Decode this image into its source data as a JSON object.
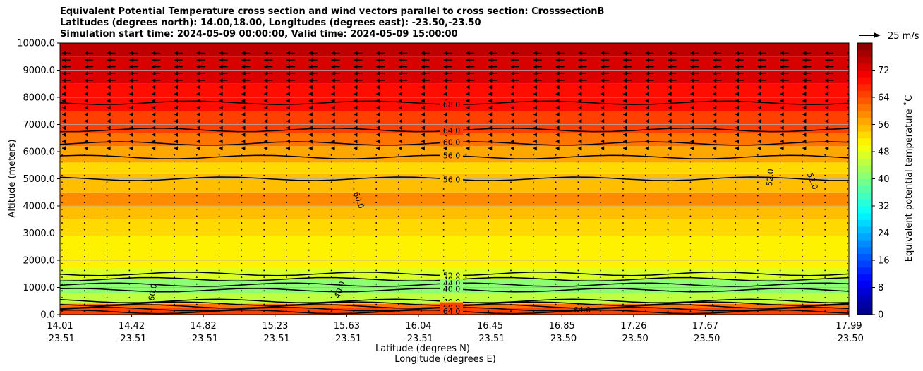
{
  "chart_data": {
    "type": "heatmap",
    "title_lines": [
      "Equivalent Potential Temperature cross section and wind vectors parallel to cross section: CrosssectionB",
      "Latitudes (degrees north): 14.00,18.00, Longitudes (degrees east): -23.50,-23.50",
      "Simulation start time: 2024-05-09 00:00:00, Valid time: 2024-05-09 15:00:00"
    ],
    "ylabel": "Altitude (meters)",
    "xlabel_line1": "Latitude (degrees N)",
    "xlabel_line2": "Longitude (degrees E)",
    "ylim": [
      0,
      10000
    ],
    "yticks": [
      "0.0",
      "1000.0",
      "2000.0",
      "3000.0",
      "4000.0",
      "5000.0",
      "6000.0",
      "7000.0",
      "8000.0",
      "9000.0",
      "10000.0"
    ],
    "xticks": [
      {
        "lat": "14.01",
        "lon": "-23.51"
      },
      {
        "lat": "14.42",
        "lon": "-23.51"
      },
      {
        "lat": "14.82",
        "lon": "-23.51"
      },
      {
        "lat": "15.23",
        "lon": "-23.51"
      },
      {
        "lat": "15.63",
        "lon": "-23.51"
      },
      {
        "lat": "16.04",
        "lon": "-23.51"
      },
      {
        "lat": "16.45",
        "lon": "-23.51"
      },
      {
        "lat": "16.85",
        "lon": "-23.50"
      },
      {
        "lat": "17.26",
        "lon": "-23.50"
      },
      {
        "lat": "17.67",
        "lon": "-23.50"
      },
      {
        "lat": "17.99",
        "lon": "-23.50"
      }
    ],
    "layers": [
      {
        "base": 0,
        "value": 64
      },
      {
        "base": 250,
        "value": 60
      },
      {
        "base": 400,
        "value": 44
      },
      {
        "base": 800,
        "value": 40
      },
      {
        "base": 1300,
        "value": 46
      },
      {
        "base": 1700,
        "value": 50
      },
      {
        "base": 2900,
        "value": 52
      },
      {
        "base": 3500,
        "value": 55
      },
      {
        "base": 4000,
        "value": 58
      },
      {
        "base": 4500,
        "value": 55
      },
      {
        "base": 5200,
        "value": 53
      },
      {
        "base": 5600,
        "value": 56
      },
      {
        "base": 6200,
        "value": 60
      },
      {
        "base": 6700,
        "value": 64
      },
      {
        "base": 7500,
        "value": 68
      },
      {
        "base": 8500,
        "value": 72
      },
      {
        "base": 9500,
        "value": 75
      }
    ],
    "contours": [
      {
        "label": "68.0",
        "alt": 7800
      },
      {
        "label": "64.0",
        "alt": 6800
      },
      {
        "label": "60.0",
        "alt": 6300
      },
      {
        "label": "56.0",
        "alt": 5800
      },
      {
        "label": "56.0",
        "alt": 5000
      },
      {
        "label": "52.0",
        "alt": 1500
      },
      {
        "label": "48.0",
        "alt": 1300
      },
      {
        "label": "44.0",
        "alt": 1100
      },
      {
        "label": "40.0",
        "alt": 900
      },
      {
        "label": "40.0",
        "alt": 500
      },
      {
        "label": "48.0",
        "alt": 400
      },
      {
        "label": "52.0",
        "alt": 300
      },
      {
        "label": "60.0",
        "alt": 200
      },
      {
        "label": "64.0",
        "alt": 100
      }
    ],
    "extra_contour_labels": [
      "60.0",
      "52.0",
      "52.0",
      "60.0",
      "40.0",
      "64.0"
    ],
    "colorbar": {
      "label": "Equivalent potential temperature ˚C",
      "vmin": 0,
      "vmax": 80,
      "step": 2,
      "ticks": [
        "0",
        "8",
        "16",
        "24",
        "32",
        "40",
        "48",
        "56",
        "64",
        "72"
      ]
    },
    "wind_key": "25 m/s",
    "wind": {
      "strong_above_alt": 8500,
      "moderate_above_alt": 6000
    }
  }
}
